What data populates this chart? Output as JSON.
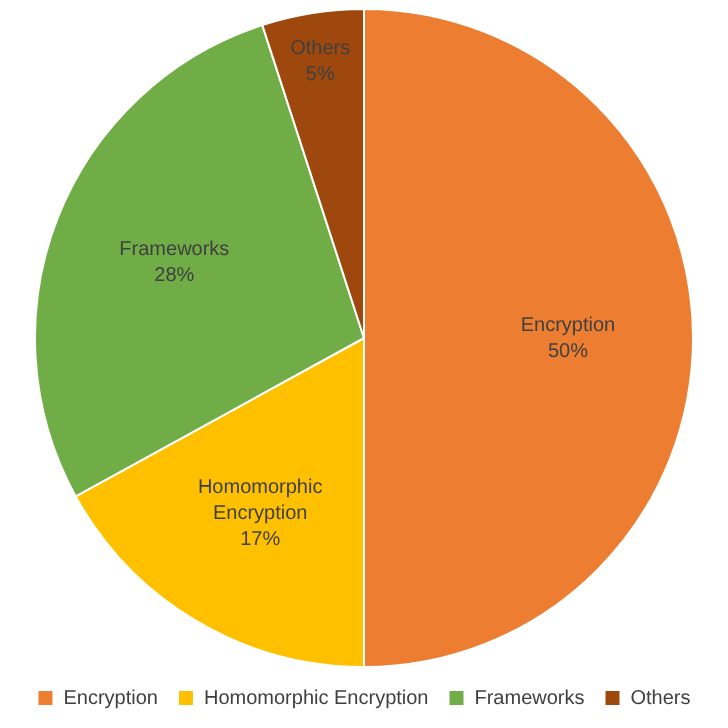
{
  "chart_data": {
    "type": "pie",
    "categories": [
      "Encryption",
      "Homomorphic Encryption",
      "Frameworks",
      "Others"
    ],
    "values": [
      50,
      17,
      28,
      5
    ],
    "colors": [
      "#ed7d31",
      "#ffc000",
      "#70ad47",
      "#9e480e"
    ],
    "value_labels": [
      "50%",
      "17%",
      "28%",
      "5%"
    ],
    "legend": "bottom"
  }
}
